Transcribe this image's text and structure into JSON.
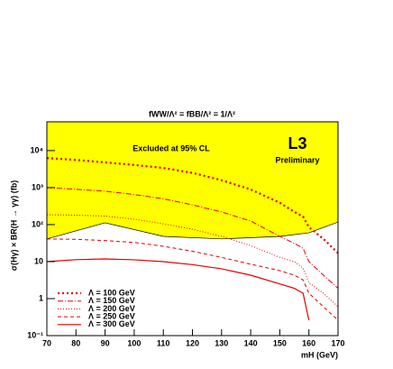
{
  "chart_data": {
    "type": "line",
    "title": "fWW/Λ² = fBB/Λ² = 1/Λ²",
    "x_label": "mH (GeV)",
    "y_label": "σ(Hγ) × BR(H → γγ) (fb)",
    "annotations": [
      "Excluded at 95% CL",
      "L3",
      "Preliminary"
    ],
    "log_y": true,
    "xlim": [
      70,
      170
    ],
    "xticks": [
      70,
      80,
      90,
      100,
      110,
      120,
      130,
      140,
      150,
      160,
      170
    ],
    "ylim": [
      0.1,
      60000
    ],
    "yticks": [
      {
        "value": 0.1,
        "label": "10⁻¹"
      },
      1,
      10,
      {
        "value": 100,
        "label": "10²"
      },
      {
        "value": 1000,
        "label": "10³"
      },
      {
        "value": 10000,
        "label": "10⁴"
      }
    ],
    "excluded_region": {
      "color": "#ffff00",
      "x": [
        70,
        90,
        110,
        130,
        150,
        160,
        170
      ],
      "values": [
        41,
        112,
        48,
        41,
        48,
        60,
        117
      ]
    },
    "x": [
      70,
      80,
      90,
      100,
      110,
      120,
      130,
      140,
      150,
      155,
      158,
      160,
      165,
      170
    ],
    "series": [
      {
        "name": "Λ = 100 GeV",
        "color": "#e00000",
        "dash": "2,3",
        "width": 2.2,
        "values": [
          6300,
          5600,
          4800,
          4100,
          3400,
          2500,
          1580,
          890,
          390,
          220,
          165,
          85,
          41,
          17
        ]
      },
      {
        "name": "Λ = 150 GeV",
        "color": "#e00000",
        "dash": "6,2,1,2",
        "width": 1,
        "values": [
          1000,
          900,
          800,
          650,
          500,
          340,
          220,
          125,
          48,
          31,
          23,
          10,
          4.3,
          1.9
        ]
      },
      {
        "name": "Λ = 200 GeV",
        "color": "#e00000",
        "dash": "1,2",
        "width": 1,
        "values": [
          185,
          180,
          170,
          140,
          105,
          75,
          48,
          27,
          13,
          10,
          6.7,
          2.7,
          1.4,
          0.6
        ]
      },
      {
        "name": "Λ = 250 GeV",
        "color": "#e00000",
        "dash": "4,3",
        "width": 1,
        "values": [
          41,
          40,
          37,
          33,
          26,
          19,
          13,
          8.5,
          5.7,
          4.3,
          3.2,
          1.4,
          0.6,
          0.26
        ]
      },
      {
        "name": "Λ = 300 GeV",
        "color": "#e00000",
        "dash": "none",
        "width": 1.2,
        "values": [
          10,
          11.3,
          11.8,
          11.2,
          10,
          8.3,
          6.4,
          4.3,
          2.5,
          1.9,
          1.4,
          0.26,
          null,
          null
        ]
      }
    ]
  }
}
